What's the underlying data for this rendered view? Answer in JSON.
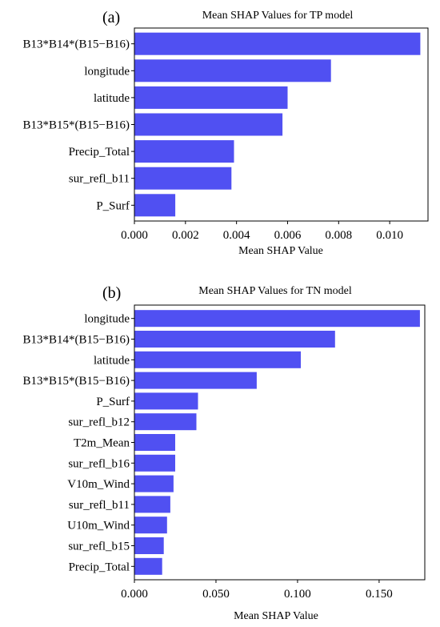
{
  "chart_data": [
    {
      "type": "bar",
      "orientation": "horizontal",
      "panel_label": "(a)",
      "title": "Mean SHAP Values for TP model",
      "xlabel": "Mean SHAP Value",
      "ylabel": "",
      "categories": [
        "B13*B14*(B15−B16)",
        "longitude",
        "latitude",
        "B13*B15*(B15−B16)",
        "Precip_Total",
        "sur_refl_b11",
        "P_Surf"
      ],
      "values": [
        0.0112,
        0.0077,
        0.006,
        0.0058,
        0.0039,
        0.0038,
        0.0016
      ],
      "xlim": [
        0,
        0.0115
      ],
      "xticks": [
        "0.000",
        "0.002",
        "0.004",
        "0.006",
        "0.008",
        "0.010"
      ],
      "xtick_values": [
        0,
        0.002,
        0.004,
        0.006,
        0.008,
        0.01
      ],
      "grid": false,
      "bar_color": "#5050f2"
    },
    {
      "type": "bar",
      "orientation": "horizontal",
      "panel_label": "(b)",
      "title": "Mean SHAP Values for TN model",
      "xlabel": "Mean SHAP Value",
      "ylabel": "",
      "categories": [
        "longitude",
        "B13*B14*(B15−B16)",
        "latitude",
        "B13*B15*(B15−B16)",
        "P_Surf",
        "sur_refl_b12",
        "T2m_Mean",
        "sur_refl_b16",
        "V10m_Wind",
        "sur_refl_b11",
        "U10m_Wind",
        "sur_refl_b15",
        "Precip_Total"
      ],
      "values": [
        0.175,
        0.123,
        0.102,
        0.075,
        0.039,
        0.038,
        0.025,
        0.025,
        0.024,
        0.022,
        0.02,
        0.018,
        0.017
      ],
      "xlim": [
        0,
        0.178
      ],
      "xticks": [
        "0.000",
        "0.050",
        "0.100",
        "0.150"
      ],
      "xtick_values": [
        0,
        0.05,
        0.1,
        0.15
      ],
      "grid": false,
      "bar_color": "#5050f2"
    }
  ]
}
